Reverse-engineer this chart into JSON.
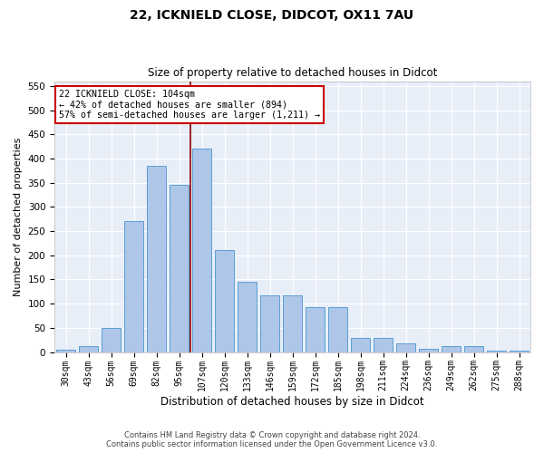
{
  "title1": "22, ICKNIELD CLOSE, DIDCOT, OX11 7AU",
  "title2": "Size of property relative to detached houses in Didcot",
  "xlabel": "Distribution of detached houses by size in Didcot",
  "ylabel": "Number of detached properties",
  "footer1": "Contains HM Land Registry data © Crown copyright and database right 2024.",
  "footer2": "Contains public sector information licensed under the Open Government Licence v3.0.",
  "annotation_line1": "22 ICKNIELD CLOSE: 104sqm",
  "annotation_line2": "← 42% of detached houses are smaller (894)",
  "annotation_line3": "57% of semi-detached houses are larger (1,211) →",
  "bar_labels": [
    "30sqm",
    "43sqm",
    "56sqm",
    "69sqm",
    "82sqm",
    "95sqm",
    "107sqm",
    "120sqm",
    "133sqm",
    "146sqm",
    "159sqm",
    "172sqm",
    "185sqm",
    "198sqm",
    "211sqm",
    "224sqm",
    "236sqm",
    "249sqm",
    "262sqm",
    "275sqm",
    "288sqm"
  ],
  "bar_values": [
    5,
    12,
    50,
    270,
    385,
    345,
    420,
    210,
    145,
    118,
    118,
    93,
    93,
    30,
    30,
    17,
    7,
    12,
    12,
    3,
    3
  ],
  "bar_color": "#aec6e8",
  "bar_edge_color": "#5a9fd4",
  "vline_color": "#8b0000",
  "bg_color": "#e8eef8",
  "annotation_box_color": "#cc0000",
  "ylim": [
    0,
    560
  ],
  "yticks": [
    0,
    50,
    100,
    150,
    200,
    250,
    300,
    350,
    400,
    450,
    500,
    550
  ],
  "vline_x": 5.5
}
